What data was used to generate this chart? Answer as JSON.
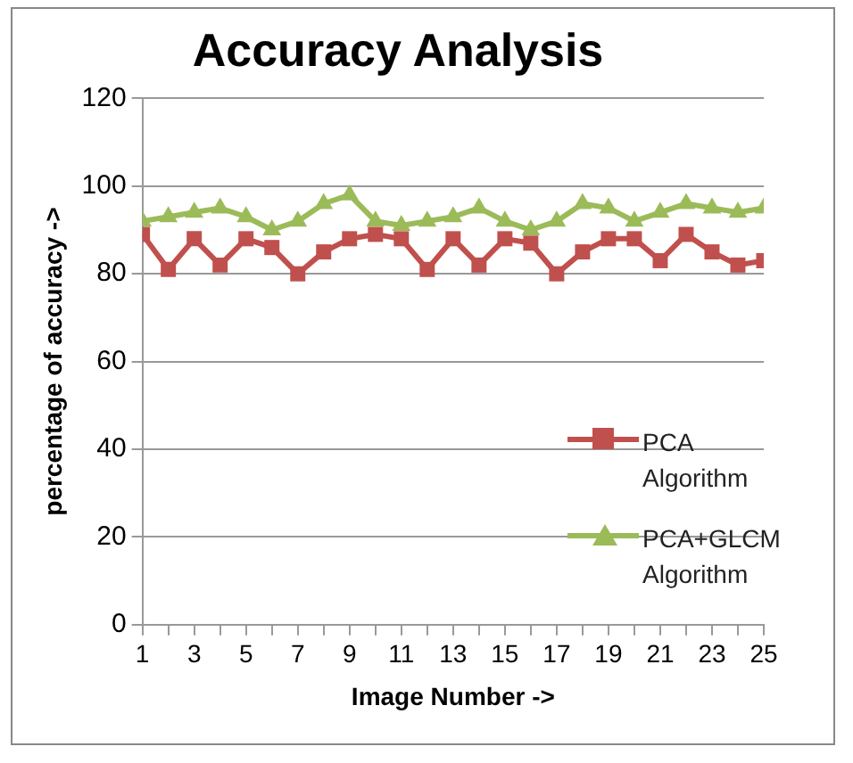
{
  "chart_data": {
    "type": "line",
    "title": "Accuracy Analysis",
    "xlabel": "Image Number ->",
    "ylabel": "percentage of accuracy ->",
    "x": [
      1,
      2,
      3,
      4,
      5,
      6,
      7,
      8,
      9,
      10,
      11,
      12,
      13,
      14,
      15,
      16,
      17,
      18,
      19,
      20,
      21,
      22,
      23,
      24,
      25
    ],
    "xlim": [
      1,
      25
    ],
    "xticks": [
      1,
      {
        "value": 2,
        "label": null
      },
      3,
      {
        "value": 4,
        "label": null
      },
      5,
      {
        "value": 6,
        "label": null
      },
      7,
      {
        "value": 8,
        "label": null
      },
      9,
      {
        "value": 10,
        "label": null
      },
      11,
      {
        "value": 12,
        "label": null
      },
      13,
      {
        "value": 14,
        "label": null
      },
      15,
      {
        "value": 16,
        "label": null
      },
      17,
      {
        "value": 18,
        "label": null
      },
      19,
      {
        "value": 20,
        "label": null
      },
      21,
      {
        "value": 22,
        "label": null
      },
      23,
      {
        "value": 24,
        "label": null
      },
      25
    ],
    "series": [
      {
        "name": "PCA Algorithm",
        "color": "#c0504d",
        "marker": "square",
        "values": [
          89,
          81,
          88,
          82,
          88,
          86,
          80,
          85,
          88,
          89,
          88,
          81,
          88,
          82,
          88,
          87,
          80,
          85,
          88,
          88,
          83,
          89,
          85,
          82,
          83
        ]
      },
      {
        "name": "PCA+GLCM Algorithm",
        "color": "#9bbb59",
        "marker": "triangle",
        "values": [
          92,
          93,
          94,
          95,
          93,
          90,
          92,
          96,
          98,
          92,
          91,
          92,
          93,
          95,
          92,
          90,
          92,
          96,
          95,
          92,
          94,
          96,
          95,
          94,
          95
        ]
      }
    ],
    "ylim": [
      0,
      120
    ],
    "yticks": [
      0,
      20,
      40,
      60,
      80,
      100,
      120
    ],
    "grid": "y",
    "legend": "right"
  }
}
